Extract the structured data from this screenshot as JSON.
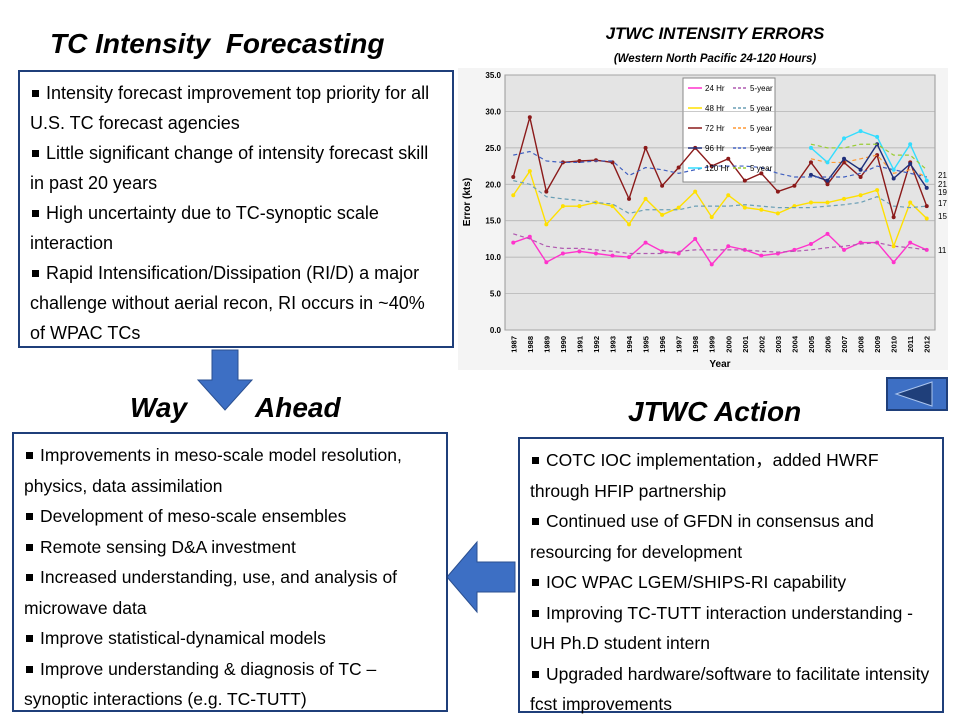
{
  "title": "TC Intensity  Forecasting",
  "box1": [
    "Intensity forecast improvement top priority for all U.S. TC forecast agencies",
    "Little significant change of intensity forecast skill in past 20 years",
    "High uncertainty due to TC-synoptic scale interaction",
    "Rapid Intensification/Dissipation (RI/D) a major challenge  without aerial recon, RI occurs in ~40% of WPAC TCs"
  ],
  "way": "Way",
  "ahead": "Ahead",
  "action_title": "JTWC Action",
  "box2": [
    "Improvements in meso-scale model resolution, physics, data assimilation",
    "Development of meso-scale ensembles",
    "Remote sensing D&A investment",
    "Increased understanding, use, and analysis of microwave data",
    "Improve statistical-dynamical models",
    "Improve understanding  & diagnosis of TC – synoptic interactions (e.g. TC-TUTT)"
  ],
  "box3": [
    "COTC IOC implementation，added HWRF through HFIP partnership",
    "Continued use of GFDN in consensus and resourcing for development",
    "IOC WPAC LGEM/SHIPS-RI capability",
    "Improving  TC-TUTT interaction understanding - UH Ph.D student intern",
    "Upgraded hardware/software to facilitate intensity fcst improvements"
  ],
  "chart_data": {
    "type": "line",
    "title": "JTWC INTENSITY ERRORS",
    "subtitle": "(Western North Pacific 24-120 Hours)",
    "y_label": "Error (kts)",
    "x_label": "Year",
    "categories": [
      "1987",
      "1988",
      "1989",
      "1990",
      "1991",
      "1992",
      "1993",
      "1994",
      "1995",
      "1996",
      "1997",
      "1998",
      "1999",
      "2000",
      "2001",
      "2002",
      "2003",
      "2004",
      "2005",
      "2006",
      "2007",
      "2008",
      "2009",
      "2010",
      "2011",
      "2012"
    ],
    "ylim": [
      0,
      35
    ],
    "yticks": [
      {
        "value": 0,
        "label": "0.0"
      },
      {
        "value": 5,
        "label": "5.0"
      },
      {
        "value": 10,
        "label": "10.0"
      },
      {
        "value": 15,
        "label": "15.0"
      },
      {
        "value": 20,
        "label": "20.0"
      },
      {
        "value": 25,
        "label": "25.0"
      },
      {
        "value": 30,
        "label": "30.0"
      },
      {
        "value": 35,
        "label": "35.0"
      }
    ],
    "grid": true,
    "series": [
      {
        "name": "24 Hr",
        "color": "#ff33cc",
        "values": [
          12,
          12.8,
          9.3,
          10.5,
          10.8,
          10.5,
          10.2,
          10,
          12,
          10.8,
          10.5,
          12.5,
          9,
          11.5,
          11,
          10.2,
          10.5,
          11,
          11.8,
          13.2,
          11,
          12,
          12,
          9.3,
          12,
          11
        ]
      },
      {
        "name": "5-year",
        "color": "#b05ab0",
        "dashed": true,
        "values": [
          13.2,
          12.5,
          11.5,
          11.2,
          11.2,
          11,
          10.8,
          10.5,
          10.5,
          10.5,
          10.8,
          11,
          11,
          11,
          11,
          10.8,
          10.7,
          10.8,
          11,
          11.3,
          11.5,
          11.8,
          12,
          11.5,
          11.3,
          11
        ]
      },
      {
        "name": "48 Hr",
        "color": "#ffe000",
        "values": [
          18.5,
          21.8,
          14.5,
          17,
          17,
          17.5,
          17,
          14.5,
          18,
          15.8,
          16.8,
          19,
          15.5,
          18.5,
          16.8,
          16.5,
          16,
          17,
          17.5,
          17.5,
          18,
          18.5,
          19.2,
          11.5,
          17.5,
          15.3
        ]
      },
      {
        "name": "5 year",
        "color": "#6a9fb5",
        "dashed": true,
        "values": [
          20.5,
          20,
          18.3,
          18,
          17.8,
          17.5,
          17.3,
          16,
          16.5,
          16.5,
          16.5,
          17,
          17,
          17,
          17.2,
          17,
          16.8,
          16.8,
          16.8,
          17,
          17.2,
          17.5,
          18.3,
          17,
          16.8,
          17
        ]
      },
      {
        "name": "72 Hr",
        "color": "#8b1a1a",
        "values": [
          21,
          29.2,
          19,
          23,
          23.2,
          23.3,
          23,
          18,
          25,
          19.8,
          22.3,
          25,
          22.5,
          23.5,
          20.5,
          21.5,
          19,
          19.8,
          23,
          20,
          23,
          21,
          24,
          15.5,
          23,
          17
        ]
      },
      {
        "name": "5 year",
        "color": "#ff9933",
        "dashed": true,
        "values": [
          null,
          null,
          null,
          null,
          null,
          null,
          null,
          null,
          null,
          null,
          null,
          null,
          null,
          null,
          null,
          null,
          null,
          null,
          23.5,
          23,
          23,
          23.5,
          24,
          21.5,
          22,
          21
        ]
      },
      {
        "name": "96 Hr",
        "color": "#1f2f7a",
        "values": [
          null,
          null,
          null,
          null,
          null,
          null,
          null,
          null,
          null,
          null,
          null,
          null,
          null,
          null,
          null,
          null,
          null,
          null,
          21.3,
          20.5,
          23.5,
          22,
          25.5,
          20.8,
          22.8,
          19.5
        ]
      },
      {
        "name": "5-year",
        "color": "#4060c0",
        "dashed": true,
        "values": [
          24,
          24.5,
          23.2,
          23,
          23,
          23.2,
          23.2,
          21.2,
          22.3,
          22,
          21.5,
          22,
          22.5,
          22.5,
          22.5,
          22.3,
          21.5,
          21,
          21,
          21,
          21,
          21.5,
          22.5,
          22,
          21.5,
          21
        ]
      },
      {
        "name": "120 Hr",
        "color": "#33ddff",
        "values": [
          null,
          null,
          null,
          null,
          null,
          null,
          null,
          null,
          null,
          null,
          null,
          null,
          null,
          null,
          null,
          null,
          null,
          null,
          25,
          23,
          26.3,
          27.3,
          26.5,
          22,
          25.5,
          20.5
        ]
      },
      {
        "name": "5 year",
        "color": "#99cc33",
        "dashed": true,
        "values": [
          null,
          null,
          null,
          null,
          null,
          null,
          null,
          null,
          null,
          null,
          null,
          null,
          null,
          null,
          null,
          null,
          null,
          null,
          25.5,
          25,
          25,
          25.5,
          25.5,
          24,
          24,
          22
        ]
      }
    ],
    "end_labels": [
      "21",
      "21",
      "19",
      "17",
      "15",
      "11"
    ]
  }
}
